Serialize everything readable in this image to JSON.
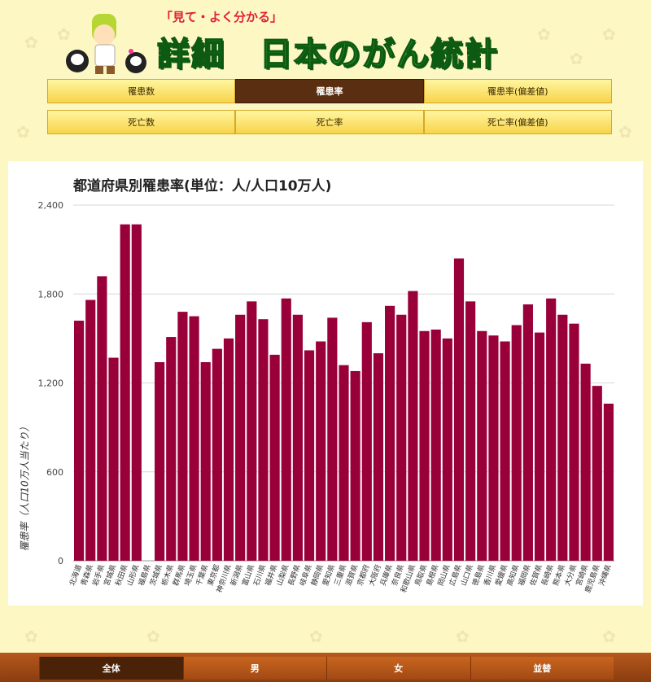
{
  "header": {
    "tagline": "「見て・よく分かる」",
    "title": "詳細　日本のがん統計"
  },
  "tabs_row1": [
    {
      "label": "罹患数",
      "active": false
    },
    {
      "label": "罹患率",
      "active": true
    },
    {
      "label": "罹患率(偏差値)",
      "active": false
    }
  ],
  "tabs_row2": [
    {
      "label": "死亡数",
      "active": false
    },
    {
      "label": "死亡率",
      "active": false
    },
    {
      "label": "死亡率(偏差値)",
      "active": false
    }
  ],
  "bottom_nav": [
    {
      "label": "全体",
      "active": true
    },
    {
      "label": "男",
      "active": false
    },
    {
      "label": "女",
      "active": false
    },
    {
      "label": "並替",
      "active": false
    }
  ],
  "colors": {
    "bar": "#99003a",
    "active_tab": "#5a2e10",
    "background": "#fdf7c3"
  },
  "chart_data": {
    "type": "bar",
    "title": "都道府県別罹患率(単位：人/人口10万人)",
    "ylabel": "罹患率（人口10万人当たり）",
    "xlabel": "",
    "ylim": [
      0,
      2400
    ],
    "yticks": [
      0,
      600,
      1200,
      1800,
      2400
    ],
    "ytick_labels": [
      "0",
      "600",
      "1,200",
      "1,800",
      "2,400"
    ],
    "grid": true,
    "categories": [
      "北海道",
      "青森県",
      "岩手県",
      "宮城県",
      "秋田県",
      "山形県",
      "福島県",
      "茨城県",
      "栃木県",
      "群馬県",
      "埼玉県",
      "千葉県",
      "東京都",
      "神奈川県",
      "新潟県",
      "富山県",
      "石川県",
      "福井県",
      "山梨県",
      "長野県",
      "岐阜県",
      "静岡県",
      "愛知県",
      "三重県",
      "滋賀県",
      "京都府",
      "大阪府",
      "兵庫県",
      "奈良県",
      "和歌山県",
      "鳥取県",
      "島根県",
      "岡山県",
      "広島県",
      "山口県",
      "徳島県",
      "香川県",
      "愛媛県",
      "高知県",
      "福岡県",
      "佐賀県",
      "長崎県",
      "熊本県",
      "大分県",
      "宮崎県",
      "鹿児島県",
      "沖縄県"
    ],
    "values": [
      1620,
      1760,
      1920,
      1370,
      2270,
      2270,
      0,
      1340,
      1510,
      1680,
      1650,
      1340,
      1430,
      1500,
      1660,
      1750,
      1630,
      1390,
      1770,
      1660,
      1420,
      1480,
      1640,
      1320,
      1280,
      1610,
      1400,
      1720,
      1660,
      1820,
      1550,
      1560,
      1500,
      2040,
      1750,
      1550,
      1520,
      1480,
      1590,
      1730,
      1540,
      1770,
      1660,
      1600,
      1330,
      1180,
      1060
    ]
  }
}
